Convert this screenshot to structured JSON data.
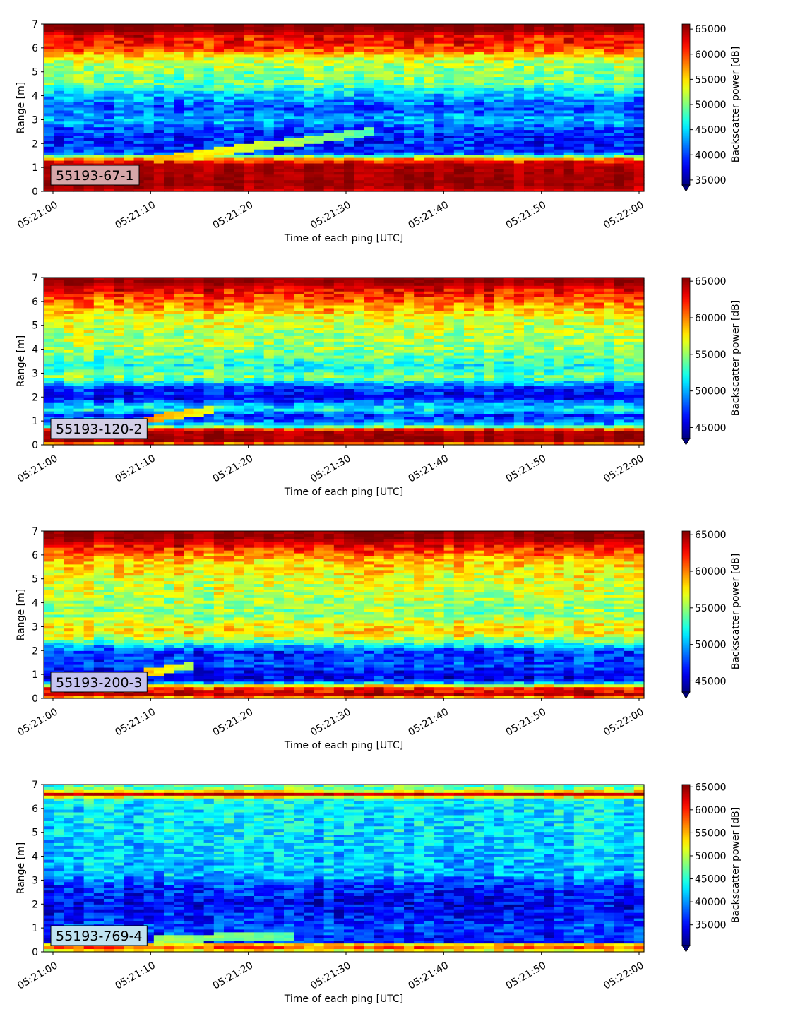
{
  "chart_data": [
    {
      "type": "heatmap",
      "label": "55193-67-1",
      "xlabel": "Time of each ping [UTC]",
      "ylabel": "Range [m]",
      "x_ticks": [
        "05:21:00",
        "05:21:10",
        "05:21:20",
        "05:21:30",
        "05:21:40",
        "05:21:50",
        "05:22:00"
      ],
      "y_ticks": [
        "0",
        "1",
        "2",
        "3",
        "4",
        "5",
        "6",
        "7"
      ],
      "ylim": [
        0,
        7
      ],
      "colorbar": {
        "label": "Backscatter power [dB]",
        "ticks": [
          "35000",
          "40000",
          "45000",
          "50000",
          "55000",
          "60000",
          "65000"
        ],
        "range": [
          34000,
          66000
        ],
        "extend": "min",
        "colormap": "jet"
      },
      "profile_by_range": [
        {
          "range_m": 0.0,
          "level": 0.9
        },
        {
          "range_m": 0.25,
          "level": 0.97
        },
        {
          "range_m": 1.1,
          "level": 0.95
        },
        {
          "range_m": 1.3,
          "level": 0.8
        },
        {
          "range_m": 1.6,
          "level": 0.18
        },
        {
          "range_m": 2.2,
          "level": 0.15
        },
        {
          "range_m": 2.6,
          "level": 0.2
        },
        {
          "range_m": 3.0,
          "level": 0.3
        },
        {
          "range_m": 3.5,
          "level": 0.2
        },
        {
          "range_m": 4.0,
          "level": 0.3
        },
        {
          "range_m": 4.5,
          "level": 0.48
        },
        {
          "range_m": 5.0,
          "level": 0.5
        },
        {
          "range_m": 5.5,
          "level": 0.58
        },
        {
          "range_m": 6.0,
          "level": 0.82
        },
        {
          "range_m": 6.5,
          "level": 0.88
        },
        {
          "range_m": 6.75,
          "level": 0.99
        },
        {
          "range_m": 7.0,
          "level": 0.99
        }
      ],
      "tracer": {
        "start_time": "05:21:10",
        "end_time": "05:21:33",
        "start_range_m": 1.3,
        "end_range_m": 2.5,
        "levels": [
          0.7,
          0.45
        ]
      }
    },
    {
      "type": "heatmap",
      "label": "55193-120-2",
      "xlabel": "Time of each ping [UTC]",
      "ylabel": "Range [m]",
      "x_ticks": [
        "05:21:00",
        "05:21:10",
        "05:21:20",
        "05:21:30",
        "05:21:40",
        "05:21:50",
        "05:22:00"
      ],
      "y_ticks": [
        "0",
        "1",
        "2",
        "3",
        "4",
        "5",
        "6",
        "7"
      ],
      "ylim": [
        0,
        7
      ],
      "colorbar": {
        "label": "Backscatter power [dB]",
        "ticks": [
          "45000",
          "50000",
          "55000",
          "60000",
          "65000"
        ],
        "range": [
          43500,
          65500
        ],
        "extend": "min",
        "colormap": "jet"
      },
      "profile_by_range": [
        {
          "range_m": 0.0,
          "level": 0.5
        },
        {
          "range_m": 0.1,
          "level": 0.98
        },
        {
          "range_m": 0.6,
          "level": 0.95
        },
        {
          "range_m": 0.8,
          "level": 0.35
        },
        {
          "range_m": 1.2,
          "level": 0.15
        },
        {
          "range_m": 1.5,
          "level": 0.4
        },
        {
          "range_m": 2.0,
          "level": 0.1
        },
        {
          "range_m": 2.4,
          "level": 0.2
        },
        {
          "range_m": 2.8,
          "level": 0.5
        },
        {
          "range_m": 3.3,
          "level": 0.4
        },
        {
          "range_m": 4.0,
          "level": 0.52
        },
        {
          "range_m": 4.6,
          "level": 0.55
        },
        {
          "range_m": 5.3,
          "level": 0.6
        },
        {
          "range_m": 6.0,
          "level": 0.78
        },
        {
          "range_m": 6.5,
          "level": 0.88
        },
        {
          "range_m": 6.8,
          "level": 0.98
        },
        {
          "range_m": 7.0,
          "level": 0.98
        }
      ],
      "tracer": {
        "start_time": "05:21:09",
        "end_time": "05:21:16",
        "start_range_m": 1.0,
        "end_range_m": 1.45,
        "levels": [
          0.75,
          0.6
        ]
      }
    },
    {
      "type": "heatmap",
      "label": "55193-200-3",
      "xlabel": "Time of each ping [UTC]",
      "ylabel": "Range [m]",
      "x_ticks": [
        "05:21:00",
        "05:21:10",
        "05:21:20",
        "05:21:30",
        "05:21:40",
        "05:21:50",
        "05:22:00"
      ],
      "y_ticks": [
        "0",
        "1",
        "2",
        "3",
        "4",
        "5",
        "6",
        "7"
      ],
      "ylim": [
        0,
        7
      ],
      "colorbar": {
        "label": "Backscatter power [dB]",
        "ticks": [
          "45000",
          "50000",
          "55000",
          "60000",
          "65000"
        ],
        "range": [
          43500,
          65500
        ],
        "extend": "min",
        "colormap": "jet"
      },
      "profile_by_range": [
        {
          "range_m": 0.0,
          "level": 0.6
        },
        {
          "range_m": 0.15,
          "level": 0.95
        },
        {
          "range_m": 0.45,
          "level": 0.8
        },
        {
          "range_m": 0.7,
          "level": 0.15
        },
        {
          "range_m": 1.0,
          "level": 0.1
        },
        {
          "range_m": 1.4,
          "level": 0.2
        },
        {
          "range_m": 1.9,
          "level": 0.15
        },
        {
          "range_m": 2.3,
          "level": 0.4
        },
        {
          "range_m": 2.7,
          "level": 0.65
        },
        {
          "range_m": 3.1,
          "level": 0.62
        },
        {
          "range_m": 3.5,
          "level": 0.5
        },
        {
          "range_m": 4.2,
          "level": 0.55
        },
        {
          "range_m": 5.0,
          "level": 0.6
        },
        {
          "range_m": 5.8,
          "level": 0.68
        },
        {
          "range_m": 6.3,
          "level": 0.85
        },
        {
          "range_m": 6.7,
          "level": 0.97
        },
        {
          "range_m": 7.0,
          "level": 0.97
        }
      ],
      "tracer": {
        "start_time": "05:21:09",
        "end_time": "05:21:14",
        "start_range_m": 1.05,
        "end_range_m": 1.35,
        "levels": [
          0.7,
          0.55
        ]
      }
    },
    {
      "type": "heatmap",
      "label": "55193-769-4",
      "xlabel": "Time of each ping [UTC]",
      "ylabel": "Range [m]",
      "x_ticks": [
        "05:21:00",
        "05:21:10",
        "05:21:20",
        "05:21:30",
        "05:21:40",
        "05:21:50",
        "05:22:00"
      ],
      "y_ticks": [
        "0",
        "1",
        "2",
        "3",
        "4",
        "5",
        "6",
        "7"
      ],
      "ylim": [
        0,
        7
      ],
      "colorbar": {
        "label": "Backscatter power [dB]",
        "ticks": [
          "35000",
          "40000",
          "45000",
          "50000",
          "55000",
          "60000",
          "65000"
        ],
        "range": [
          30500,
          65500
        ],
        "extend": "min",
        "colormap": "jet"
      },
      "profile_by_range": [
        {
          "range_m": 0.0,
          "level": 0.35
        },
        {
          "range_m": 0.1,
          "level": 0.85
        },
        {
          "range_m": 0.3,
          "level": 0.65
        },
        {
          "range_m": 0.4,
          "level": 0.15
        },
        {
          "range_m": 1.0,
          "level": 0.2
        },
        {
          "range_m": 1.5,
          "level": 0.15
        },
        {
          "range_m": 2.0,
          "level": 0.12
        },
        {
          "range_m": 2.8,
          "level": 0.18
        },
        {
          "range_m": 3.2,
          "level": 0.3
        },
        {
          "range_m": 4.0,
          "level": 0.33
        },
        {
          "range_m": 5.0,
          "level": 0.35
        },
        {
          "range_m": 6.0,
          "level": 0.36
        },
        {
          "range_m": 6.4,
          "level": 0.4
        },
        {
          "range_m": 6.6,
          "level": 0.95
        },
        {
          "range_m": 6.75,
          "level": 0.5
        },
        {
          "range_m": 7.0,
          "level": 0.45
        }
      ],
      "tracer": {
        "start_time": "05:21:10",
        "end_time": "05:21:25",
        "start_range_m": 0.5,
        "end_range_m": 0.7,
        "levels": [
          0.55,
          0.45
        ]
      }
    }
  ]
}
